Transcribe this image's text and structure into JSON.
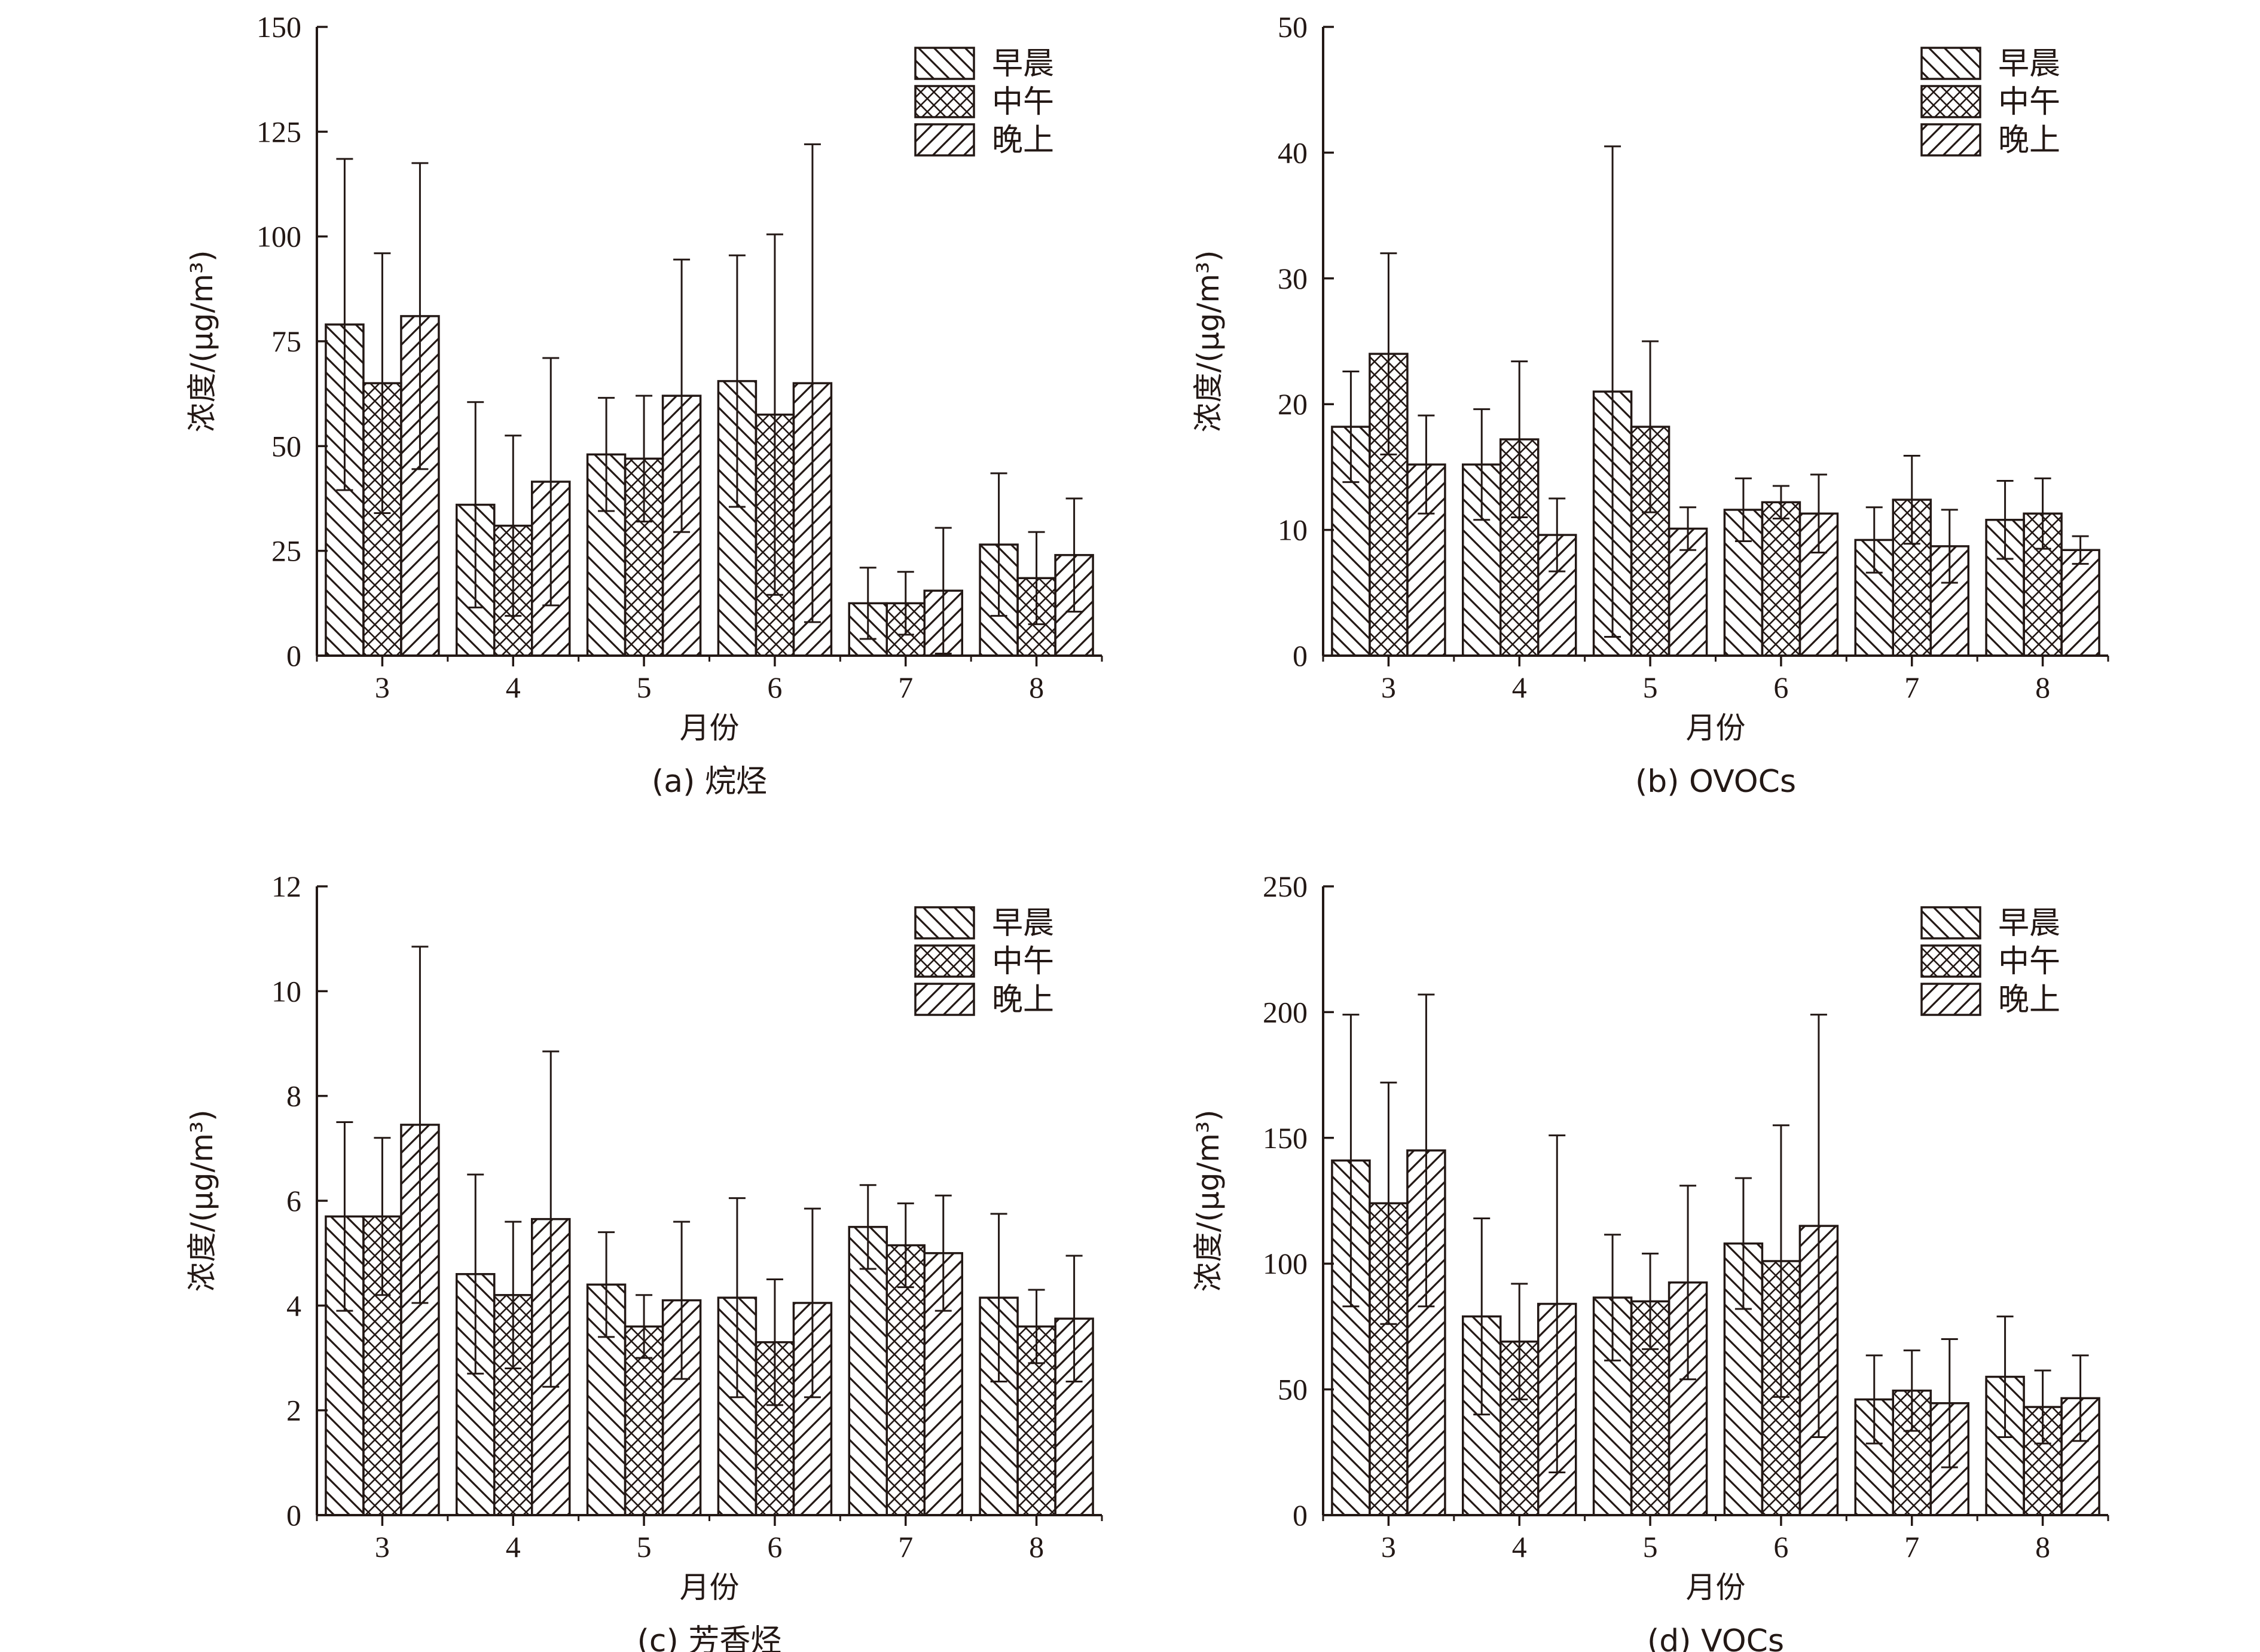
{
  "figure": {
    "series_names": [
      "早晨",
      "中午",
      "晚上"
    ],
    "axis_label_x": "月份",
    "axis_label_y": "浓度/(μg/m³)"
  },
  "chart_data": [
    {
      "type": "bar",
      "caption": "(a) 烷烃",
      "xlabel": "月份",
      "ylabel": "浓度/(μg/m³)",
      "categories": [
        "3",
        "4",
        "5",
        "6",
        "7",
        "8"
      ],
      "ylim": [
        0,
        150
      ],
      "yticks": [
        0,
        25,
        50,
        75,
        100,
        125,
        150
      ],
      "legend_position": "top-right",
      "series": [
        {
          "name": "早晨",
          "values": [
            79,
            36,
            48,
            65.5,
            12.5,
            26.5
          ],
          "errors": [
            39.5,
            24.5,
            13.5,
            30,
            8.5,
            17
          ]
        },
        {
          "name": "中午",
          "values": [
            65,
            31,
            47,
            57.5,
            12.5,
            18.5
          ],
          "errors": [
            31,
            21.5,
            15,
            43,
            7.5,
            11
          ]
        },
        {
          "name": "晚上",
          "values": [
            81,
            41.5,
            62,
            65,
            15.5,
            24
          ],
          "errors": [
            36.5,
            29.5,
            32.5,
            57,
            15,
            13.5
          ]
        }
      ]
    },
    {
      "type": "bar",
      "caption": "(b) OVOCs",
      "xlabel": "月份",
      "ylabel": "浓度/(μg/m³)",
      "categories": [
        "3",
        "4",
        "5",
        "6",
        "7",
        "8"
      ],
      "ylim": [
        0,
        50
      ],
      "yticks": [
        0,
        10,
        20,
        30,
        40,
        50
      ],
      "legend_position": "top-right",
      "series": [
        {
          "name": "早晨",
          "values": [
            18.2,
            15.2,
            21,
            11.6,
            9.2,
            10.8
          ],
          "errors": [
            4.4,
            4.4,
            19.5,
            2.5,
            2.6,
            3.1
          ]
        },
        {
          "name": "中午",
          "values": [
            24,
            17.2,
            18.2,
            12.2,
            12.4,
            11.3
          ],
          "errors": [
            8,
            6.2,
            6.8,
            1.3,
            3.5,
            2.8
          ]
        },
        {
          "name": "晚上",
          "values": [
            15.2,
            9.6,
            10.1,
            11.3,
            8.7,
            8.4
          ],
          "errors": [
            3.9,
            2.9,
            1.7,
            3.1,
            2.9,
            1.1
          ]
        }
      ]
    },
    {
      "type": "bar",
      "caption": "(c) 芳香烃",
      "xlabel": "月份",
      "ylabel": "浓度/(μg/m³)",
      "categories": [
        "3",
        "4",
        "5",
        "6",
        "7",
        "8"
      ],
      "ylim": [
        0,
        12
      ],
      "yticks": [
        0,
        2,
        4,
        6,
        8,
        10,
        12
      ],
      "legend_position": "top-right",
      "series": [
        {
          "name": "早晨",
          "values": [
            5.7,
            4.6,
            4.4,
            4.15,
            5.5,
            4.15
          ],
          "errors": [
            1.8,
            1.9,
            1.0,
            1.9,
            0.8,
            1.6
          ]
        },
        {
          "name": "中午",
          "values": [
            5.7,
            4.2,
            3.6,
            3.3,
            5.15,
            3.6
          ],
          "errors": [
            1.5,
            1.4,
            0.6,
            1.2,
            0.8,
            0.7
          ]
        },
        {
          "name": "晚上",
          "values": [
            7.45,
            5.65,
            4.1,
            4.05,
            5.0,
            3.75
          ],
          "errors": [
            3.4,
            3.2,
            1.5,
            1.8,
            1.1,
            1.2
          ]
        }
      ]
    },
    {
      "type": "bar",
      "caption": "(d) VOCs",
      "xlabel": "月份",
      "ylabel": "浓度/(μg/m³)",
      "categories": [
        "3",
        "4",
        "5",
        "6",
        "7",
        "8"
      ],
      "ylim": [
        0,
        250
      ],
      "yticks": [
        0,
        50,
        100,
        150,
        200,
        250
      ],
      "legend_position": "top-right",
      "series": [
        {
          "name": "早晨",
          "values": [
            141,
            79,
            86.5,
            108,
            46,
            55
          ],
          "errors": [
            58,
            39,
            25,
            26,
            17.5,
            24
          ]
        },
        {
          "name": "中午",
          "values": [
            124,
            69,
            85,
            101,
            49.5,
            43
          ],
          "errors": [
            48,
            23,
            19,
            54,
            16,
            14.5
          ]
        },
        {
          "name": "晚上",
          "values": [
            145,
            84,
            92.5,
            115,
            44.5,
            46.5
          ],
          "errors": [
            62,
            67,
            38.5,
            84,
            25.5,
            17
          ]
        }
      ]
    }
  ]
}
